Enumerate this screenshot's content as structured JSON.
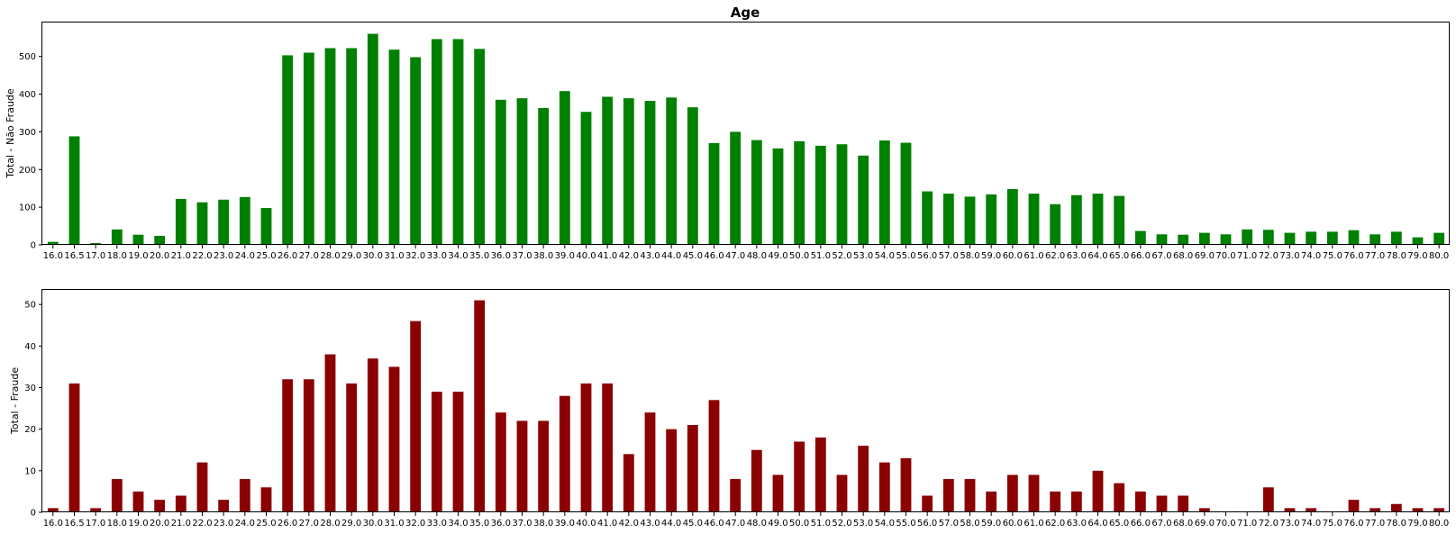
{
  "chart_data": [
    {
      "type": "bar",
      "title": "Age",
      "xlabel": "",
      "ylabel": "Total - Não Fraude",
      "ylim": [
        0,
        590
      ],
      "yticks": [
        0,
        100,
        200,
        300,
        400,
        500
      ],
      "color": "#008000",
      "categories": [
        "16.0",
        "16.5",
        "17.0",
        "18.0",
        "19.0",
        "20.0",
        "21.0",
        "22.0",
        "23.0",
        "24.0",
        "25.0",
        "26.0",
        "27.0",
        "28.0",
        "29.0",
        "30.0",
        "31.0",
        "32.0",
        "33.0",
        "34.0",
        "35.0",
        "36.0",
        "37.0",
        "38.0",
        "39.0",
        "40.0",
        "41.0",
        "42.0",
        "43.0",
        "44.0",
        "45.0",
        "46.0",
        "47.0",
        "48.0",
        "49.0",
        "50.0",
        "51.0",
        "52.0",
        "53.0",
        "54.0",
        "55.0",
        "56.0",
        "57.0",
        "58.0",
        "59.0",
        "60.0",
        "61.0",
        "62.0",
        "63.0",
        "64.0",
        "65.0",
        "66.0",
        "67.0",
        "68.0",
        "69.0",
        "70.0",
        "71.0",
        "72.0",
        "73.0",
        "74.0",
        "75.0",
        "76.0",
        "77.0",
        "78.0",
        "79.0",
        "80.0"
      ],
      "values": [
        8,
        288,
        5,
        41,
        27,
        24,
        122,
        113,
        120,
        127,
        98,
        503,
        510,
        522,
        522,
        560,
        518,
        498,
        546,
        546,
        520,
        385,
        389,
        363,
        408,
        353,
        393,
        389,
        382,
        391,
        365,
        270,
        300,
        278,
        256,
        275,
        263,
        267,
        237,
        277,
        271,
        142,
        136,
        128,
        134,
        148,
        136,
        108,
        132,
        136,
        130,
        37,
        28,
        27,
        32,
        28,
        41,
        40,
        32,
        35,
        35,
        39,
        28,
        35,
        20,
        32
      ],
      "grid": false,
      "legend": "none"
    },
    {
      "type": "bar",
      "title": "",
      "xlabel": "",
      "ylabel": "Total - Fraude",
      "ylim": [
        0,
        53.5
      ],
      "yticks": [
        0,
        10,
        20,
        30,
        40,
        50
      ],
      "color": "#8b0000",
      "categories": [
        "16.0",
        "16.5",
        "17.0",
        "18.0",
        "19.0",
        "20.0",
        "21.0",
        "22.0",
        "23.0",
        "24.0",
        "25.0",
        "26.0",
        "27.0",
        "28.0",
        "29.0",
        "30.0",
        "31.0",
        "32.0",
        "33.0",
        "34.0",
        "35.0",
        "36.0",
        "37.0",
        "38.0",
        "39.0",
        "40.0",
        "41.0",
        "42.0",
        "43.0",
        "44.0",
        "45.0",
        "46.0",
        "47.0",
        "48.0",
        "49.0",
        "50.0",
        "51.0",
        "52.0",
        "53.0",
        "54.0",
        "55.0",
        "56.0",
        "57.0",
        "58.0",
        "59.0",
        "60.0",
        "61.0",
        "62.0",
        "63.0",
        "64.0",
        "65.0",
        "66.0",
        "67.0",
        "68.0",
        "69.0",
        "70.0",
        "71.0",
        "72.0",
        "73.0",
        "74.0",
        "75.0",
        "76.0",
        "77.0",
        "78.0",
        "79.0",
        "80.0"
      ],
      "values": [
        1,
        31,
        1,
        8,
        5,
        3,
        4,
        12,
        3,
        8,
        6,
        32,
        32,
        38,
        31,
        37,
        35,
        46,
        29,
        29,
        51,
        24,
        22,
        22,
        28,
        31,
        31,
        14,
        24,
        20,
        21,
        27,
        8,
        15,
        9,
        17,
        18,
        9,
        16,
        12,
        13,
        4,
        8,
        8,
        5,
        9,
        9,
        5,
        5,
        10,
        7,
        5,
        4,
        4,
        1,
        0,
        0,
        6,
        1,
        1,
        0,
        3,
        1,
        2,
        1,
        1
      ],
      "grid": false,
      "legend": "none"
    }
  ]
}
